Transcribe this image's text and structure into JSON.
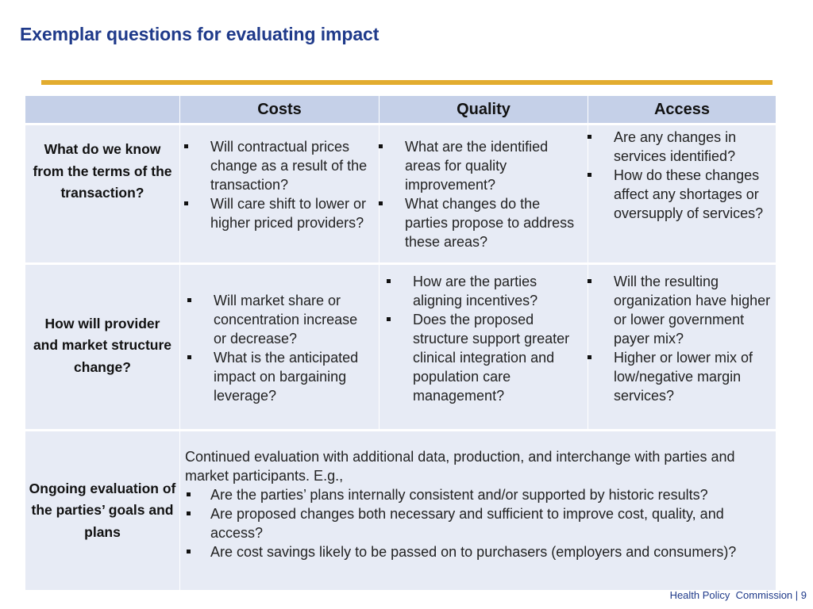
{
  "title": "Exemplar questions for evaluating impact",
  "colors": {
    "title": "#1f3a8a",
    "accent_rule": "#e2ac2f",
    "header_fill": "#c5d0e8",
    "cell_fill": "#e7ebf5"
  },
  "table": {
    "columns": [
      "Costs",
      "Quality",
      "Access"
    ],
    "rows": [
      {
        "label": "What do we know from the terms of the transaction?",
        "cells": [
          [
            "Will contractual prices change as a result of the transaction?",
            "Will care shift to lower or higher priced providers?"
          ],
          [
            "What are the identified areas for quality improvement?",
            "What changes do the parties propose to address these areas?"
          ],
          [
            "Are any changes in services identified?",
            "How do these changes affect any shortages or oversupply of services?"
          ]
        ]
      },
      {
        "label": "How will provider and market structure change?",
        "cells": [
          [
            "Will market share or concentration increase or decrease?",
            "What is the anticipated impact on bargaining leverage?"
          ],
          [
            "How are the parties aligning incentives?",
            "Does the proposed structure support greater clinical integration and population care management?"
          ],
          [
            "Will the resulting organization have higher or lower government payer mix?",
            "Higher or lower mix of low/negative margin services?"
          ]
        ]
      },
      {
        "label": "Ongoing evaluation of the parties’ goals and plans",
        "intro": "Continued evaluation with additional data, production, and interchange with parties and market participants.  E.g.,",
        "bullets": [
          "Are the parties’ plans internally consistent and/or supported by historic results?",
          "Are proposed changes both necessary and sufficient to improve cost, quality, and access?",
          "Are cost savings likely to be passed on to purchasers (employers and consumers)?"
        ]
      }
    ]
  },
  "footer": "Health Policy  Commission | 9"
}
